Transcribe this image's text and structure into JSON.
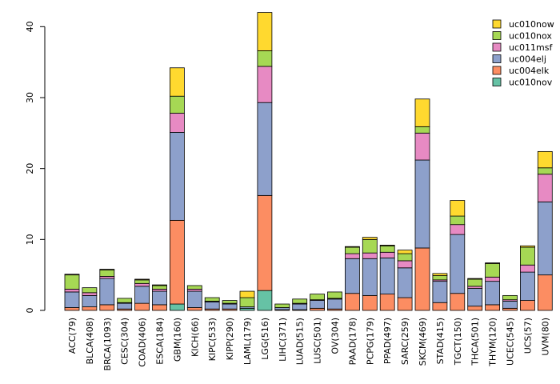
{
  "chart_data": {
    "type": "bar",
    "stacked": true,
    "title": "",
    "xlabel": "",
    "ylabel": "",
    "ylim": [
      0,
      42
    ],
    "yticks": [
      0,
      10,
      20,
      30,
      40
    ],
    "grid": false,
    "legend_position": "top-right",
    "categories": [
      "ACC(79)",
      "BLCA(408)",
      "BRCA(1093)",
      "CESC(304)",
      "COAD(406)",
      "ESCA(184)",
      "GBM(160)",
      "KICH(66)",
      "KIPC(533)",
      "KIPP(290)",
      "LAML(179)",
      "LGG(516)",
      "LIHC(371)",
      "LUAD(515)",
      "LUSC(501)",
      "OV(304)",
      "PAAD(178)",
      "PCPG(179)",
      "PPAD(497)",
      "SARC(259)",
      "SKCM(469)",
      "STAD(415)",
      "TGCT(150)",
      "THCA(501)",
      "THYM(120)",
      "UCEC(545)",
      "UCS(57)",
      "UVM(80)"
    ],
    "series": [
      {
        "name": "uc010nov",
        "color": "#66c2a5",
        "values": [
          0,
          0,
          0,
          0,
          0,
          0,
          0.9,
          0,
          0,
          0,
          0.3,
          2.8,
          0,
          0,
          0,
          0,
          0,
          0,
          0,
          0,
          0,
          0,
          0,
          0,
          0,
          0,
          0,
          0
        ]
      },
      {
        "name": "uc004elk",
        "color": "#fc8d62",
        "values": [
          0.4,
          0.5,
          0.8,
          0.2,
          1.0,
          0.8,
          11.8,
          0.4,
          0.2,
          0.2,
          0,
          13.4,
          0.1,
          0.1,
          0.3,
          0.2,
          2.4,
          2.1,
          2.3,
          1.8,
          8.8,
          1.1,
          2.4,
          0.6,
          0.8,
          0.3,
          1.4,
          5.0
        ]
      },
      {
        "name": "uc004elj",
        "color": "#8da0cb",
        "values": [
          2.2,
          1.6,
          3.7,
          0.8,
          2.4,
          1.9,
          12.4,
          2.3,
          1.0,
          0.7,
          0.2,
          13.1,
          0.3,
          0.8,
          1.1,
          1.4,
          4.9,
          5.2,
          5.1,
          4.2,
          12.4,
          3.0,
          8.3,
          2.5,
          3.3,
          1.0,
          4.0,
          10.3
        ]
      },
      {
        "name": "uc011msf",
        "color": "#e78ac3",
        "values": [
          0.4,
          0.4,
          0.3,
          0.1,
          0.4,
          0.3,
          2.7,
          0.3,
          0.1,
          0.1,
          0,
          5.1,
          0,
          0.1,
          0.1,
          0.1,
          0.7,
          0.8,
          0.8,
          1.0,
          3.8,
          0.2,
          1.4,
          0.3,
          0.6,
          0.2,
          1.0,
          3.9
        ]
      },
      {
        "name": "uc010nox",
        "color": "#a6d854",
        "values": [
          2.0,
          0.7,
          0.9,
          0.6,
          0.5,
          0.5,
          2.4,
          0.5,
          0.5,
          0.4,
          1.3,
          2.2,
          0.5,
          0.6,
          0.8,
          0.9,
          0.9,
          1.9,
          0.9,
          1.0,
          0.9,
          0.6,
          1.2,
          1.0,
          1.9,
          0.6,
          2.5,
          0.9
        ]
      },
      {
        "name": "uc010now",
        "color": "#ffd92f",
        "values": [
          0.1,
          0,
          0.1,
          0,
          0.1,
          0.1,
          4.0,
          0,
          0,
          0,
          0.9,
          5.4,
          0,
          0,
          0,
          0,
          0.1,
          0.3,
          0.1,
          0.5,
          3.9,
          0.3,
          2.2,
          0.1,
          0.1,
          0,
          0.2,
          2.3
        ]
      }
    ]
  }
}
